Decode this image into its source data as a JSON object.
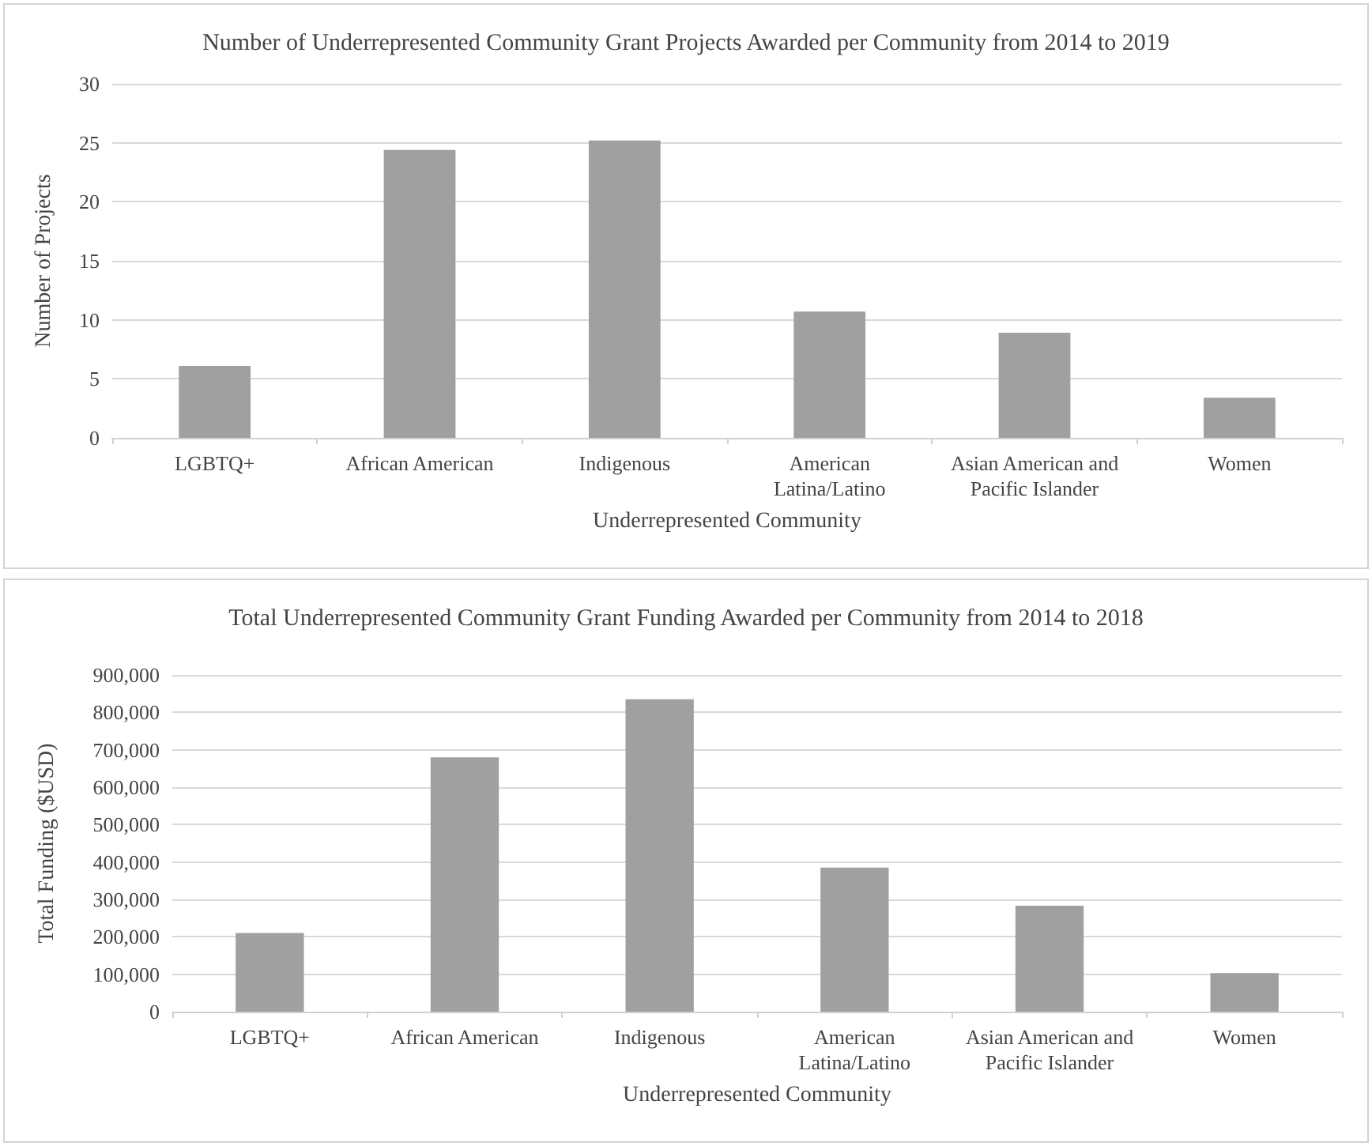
{
  "chart_data": [
    {
      "type": "bar",
      "title": "Number of Underrepresented Community Grant Projects Awarded per Community from 2014 to 2019",
      "xlabel": "Underrepresented Community",
      "ylabel": "Number of Projects",
      "categories": [
        "LGBTQ+",
        "African American",
        "Indigenous",
        "American Latina/Latino",
        "Asian American and Pacific Islander",
        "Women"
      ],
      "values": [
        6.1,
        24.4,
        25.2,
        10.7,
        8.9,
        3.4
      ],
      "color": "#a0a0a0",
      "ylim": [
        0,
        30
      ],
      "yticks": [
        0,
        5,
        10,
        15,
        20,
        25,
        30
      ],
      "grid": "y"
    },
    {
      "type": "bar",
      "title": "Total Underrepresented Community Grant Funding Awarded per Community from 2014 to 2018",
      "xlabel": "Underrepresented Community",
      "ylabel": "Total Funding ($USD)",
      "categories": [
        "LGBTQ+",
        "African American",
        "Indigenous",
        "American Latina/Latino",
        "Asian American and Pacific Islander",
        "Women"
      ],
      "values": [
        210000,
        680000,
        835000,
        385000,
        283000,
        103000
      ],
      "color": "#a0a0a0",
      "ylim": [
        0,
        900000
      ],
      "yticks": [
        0,
        {
          "value": 100000,
          "label": "100,000"
        },
        {
          "value": 200000,
          "label": "200,000"
        },
        {
          "value": 300000,
          "label": "300,000"
        },
        {
          "value": 400000,
          "label": "400,000"
        },
        {
          "value": 500000,
          "label": "500,000"
        },
        {
          "value": 600000,
          "label": "600,000"
        },
        {
          "value": 700000,
          "label": "700,000"
        },
        {
          "value": 800000,
          "label": "800,000"
        },
        {
          "value": 900000,
          "label": "900,000"
        }
      ],
      "grid": "y"
    }
  ]
}
